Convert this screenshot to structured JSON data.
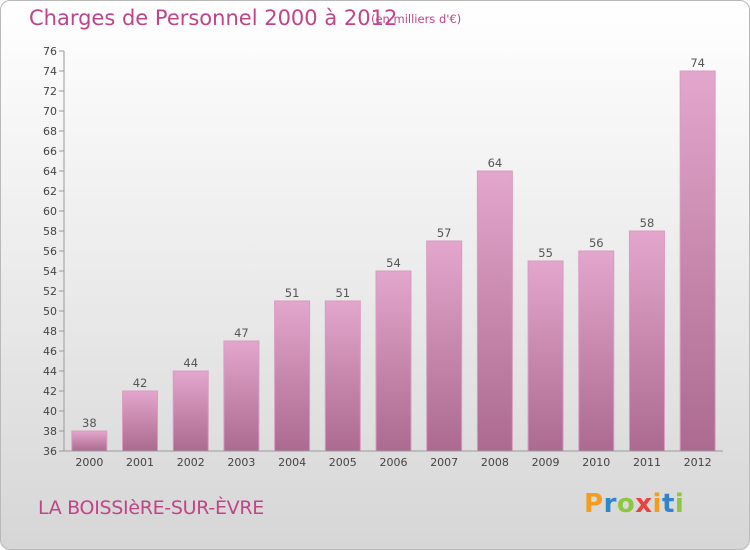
{
  "chart_data": {
    "type": "bar",
    "title": "Charges de Personnel 2000 à 2012",
    "subtitle": "(en milliers d'€)",
    "categories": [
      "2000",
      "2001",
      "2002",
      "2003",
      "2004",
      "2005",
      "2006",
      "2007",
      "2008",
      "2009",
      "2010",
      "2011",
      "2012"
    ],
    "values": [
      38,
      42,
      44,
      47,
      51,
      51,
      54,
      57,
      64,
      55,
      56,
      58,
      74
    ],
    "ylim": [
      36,
      76
    ],
    "ytick_step": 2,
    "grid": false,
    "bar_color": "#c35d94"
  },
  "commune": "LA BOISSIèRE-SUR-ÈVRE",
  "logo": {
    "letters": [
      "P",
      "r",
      "o",
      "x",
      "i",
      "t",
      "i"
    ],
    "colors": [
      "#f39c1f",
      "#2f86c9",
      "#8dc63f",
      "#e8423f",
      "#f39c1f",
      "#2f86c9",
      "#8dc63f"
    ]
  }
}
